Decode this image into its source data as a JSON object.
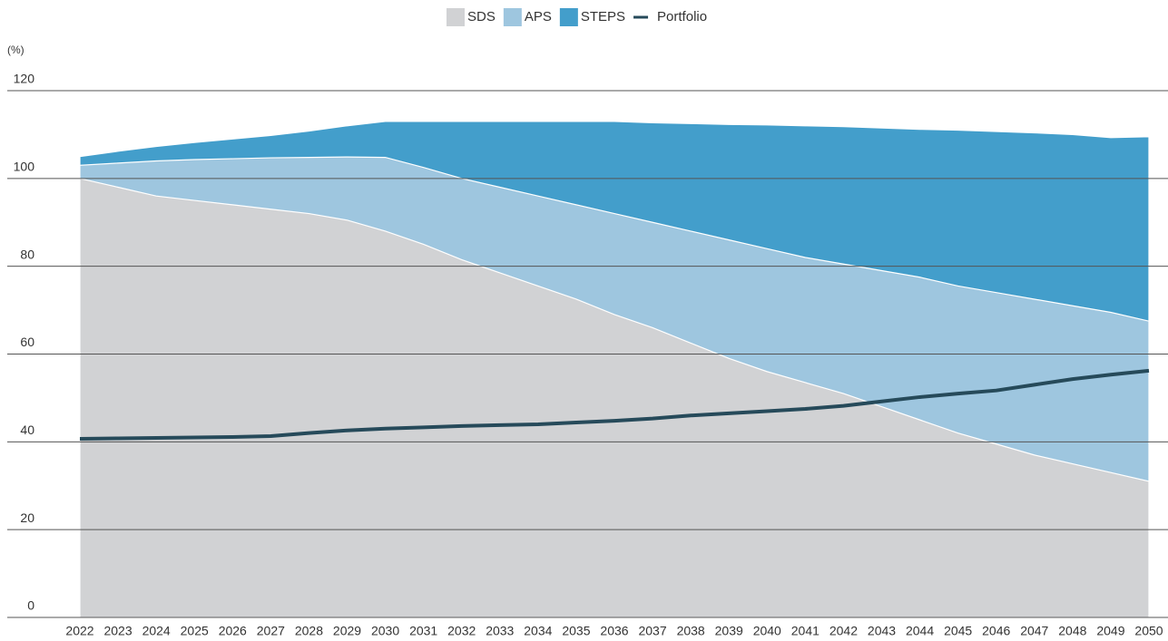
{
  "chart_data": {
    "type": "area",
    "y_label": "(%)",
    "categories": [
      "2022",
      "2023",
      "2024",
      "2025",
      "2026",
      "2027",
      "2028",
      "2029",
      "2030",
      "2031",
      "2032",
      "2033",
      "2034",
      "2035",
      "2036",
      "2037",
      "2038",
      "2039",
      "2040",
      "2041",
      "2042",
      "2043",
      "2044",
      "2045",
      "2046",
      "2047",
      "2048",
      "2049",
      "2050"
    ],
    "series": [
      {
        "name": "SDS",
        "type": "area",
        "color": "#d1d2d4",
        "values": [
          100,
          98,
          96,
          95,
          94,
          93,
          92,
          90.5,
          88,
          85,
          81.5,
          78.5,
          75.5,
          72.5,
          69,
          66,
          62.5,
          59,
          56,
          53.5,
          51,
          48,
          45,
          42,
          39.5,
          37,
          35,
          33,
          31
        ]
      },
      {
        "name": "APS",
        "type": "area",
        "color": "#9ec6df",
        "values": [
          103,
          103.5,
          104,
          104.3,
          104.5,
          104.7,
          104.8,
          104.9,
          104.8,
          102.5,
          100,
          98,
          96,
          94,
          92,
          90,
          88,
          86,
          84,
          82,
          80.5,
          79,
          77.5,
          75.5,
          74,
          72.5,
          71,
          69.5,
          67.5
        ]
      },
      {
        "name": "STEPS",
        "type": "area",
        "color": "#439ecb",
        "values": [
          105,
          106.2,
          107.3,
          108.2,
          109,
          109.8,
          110.8,
          112,
          113,
          113,
          113,
          113,
          113,
          113,
          113,
          112.7,
          112.5,
          112.3,
          112.2,
          112,
          111.8,
          111.5,
          111.2,
          111,
          110.7,
          110.4,
          110,
          109.3,
          109.5
        ]
      },
      {
        "name": "Portfolio",
        "type": "line",
        "color": "#264a5a",
        "values": [
          40.7,
          40.8,
          40.9,
          41,
          41.1,
          41.3,
          42,
          42.6,
          43,
          43.3,
          43.6,
          43.8,
          44,
          44.4,
          44.8,
          45.3,
          46,
          46.5,
          47,
          47.5,
          48.2,
          49.2,
          50.2,
          51,
          51.7,
          53,
          54.3,
          55.3,
          56.2
        ]
      }
    ],
    "ylim": [
      0,
      120
    ],
    "yticks": [
      0,
      20,
      40,
      60,
      80,
      100,
      120
    ],
    "grid": true,
    "legend": "top"
  }
}
